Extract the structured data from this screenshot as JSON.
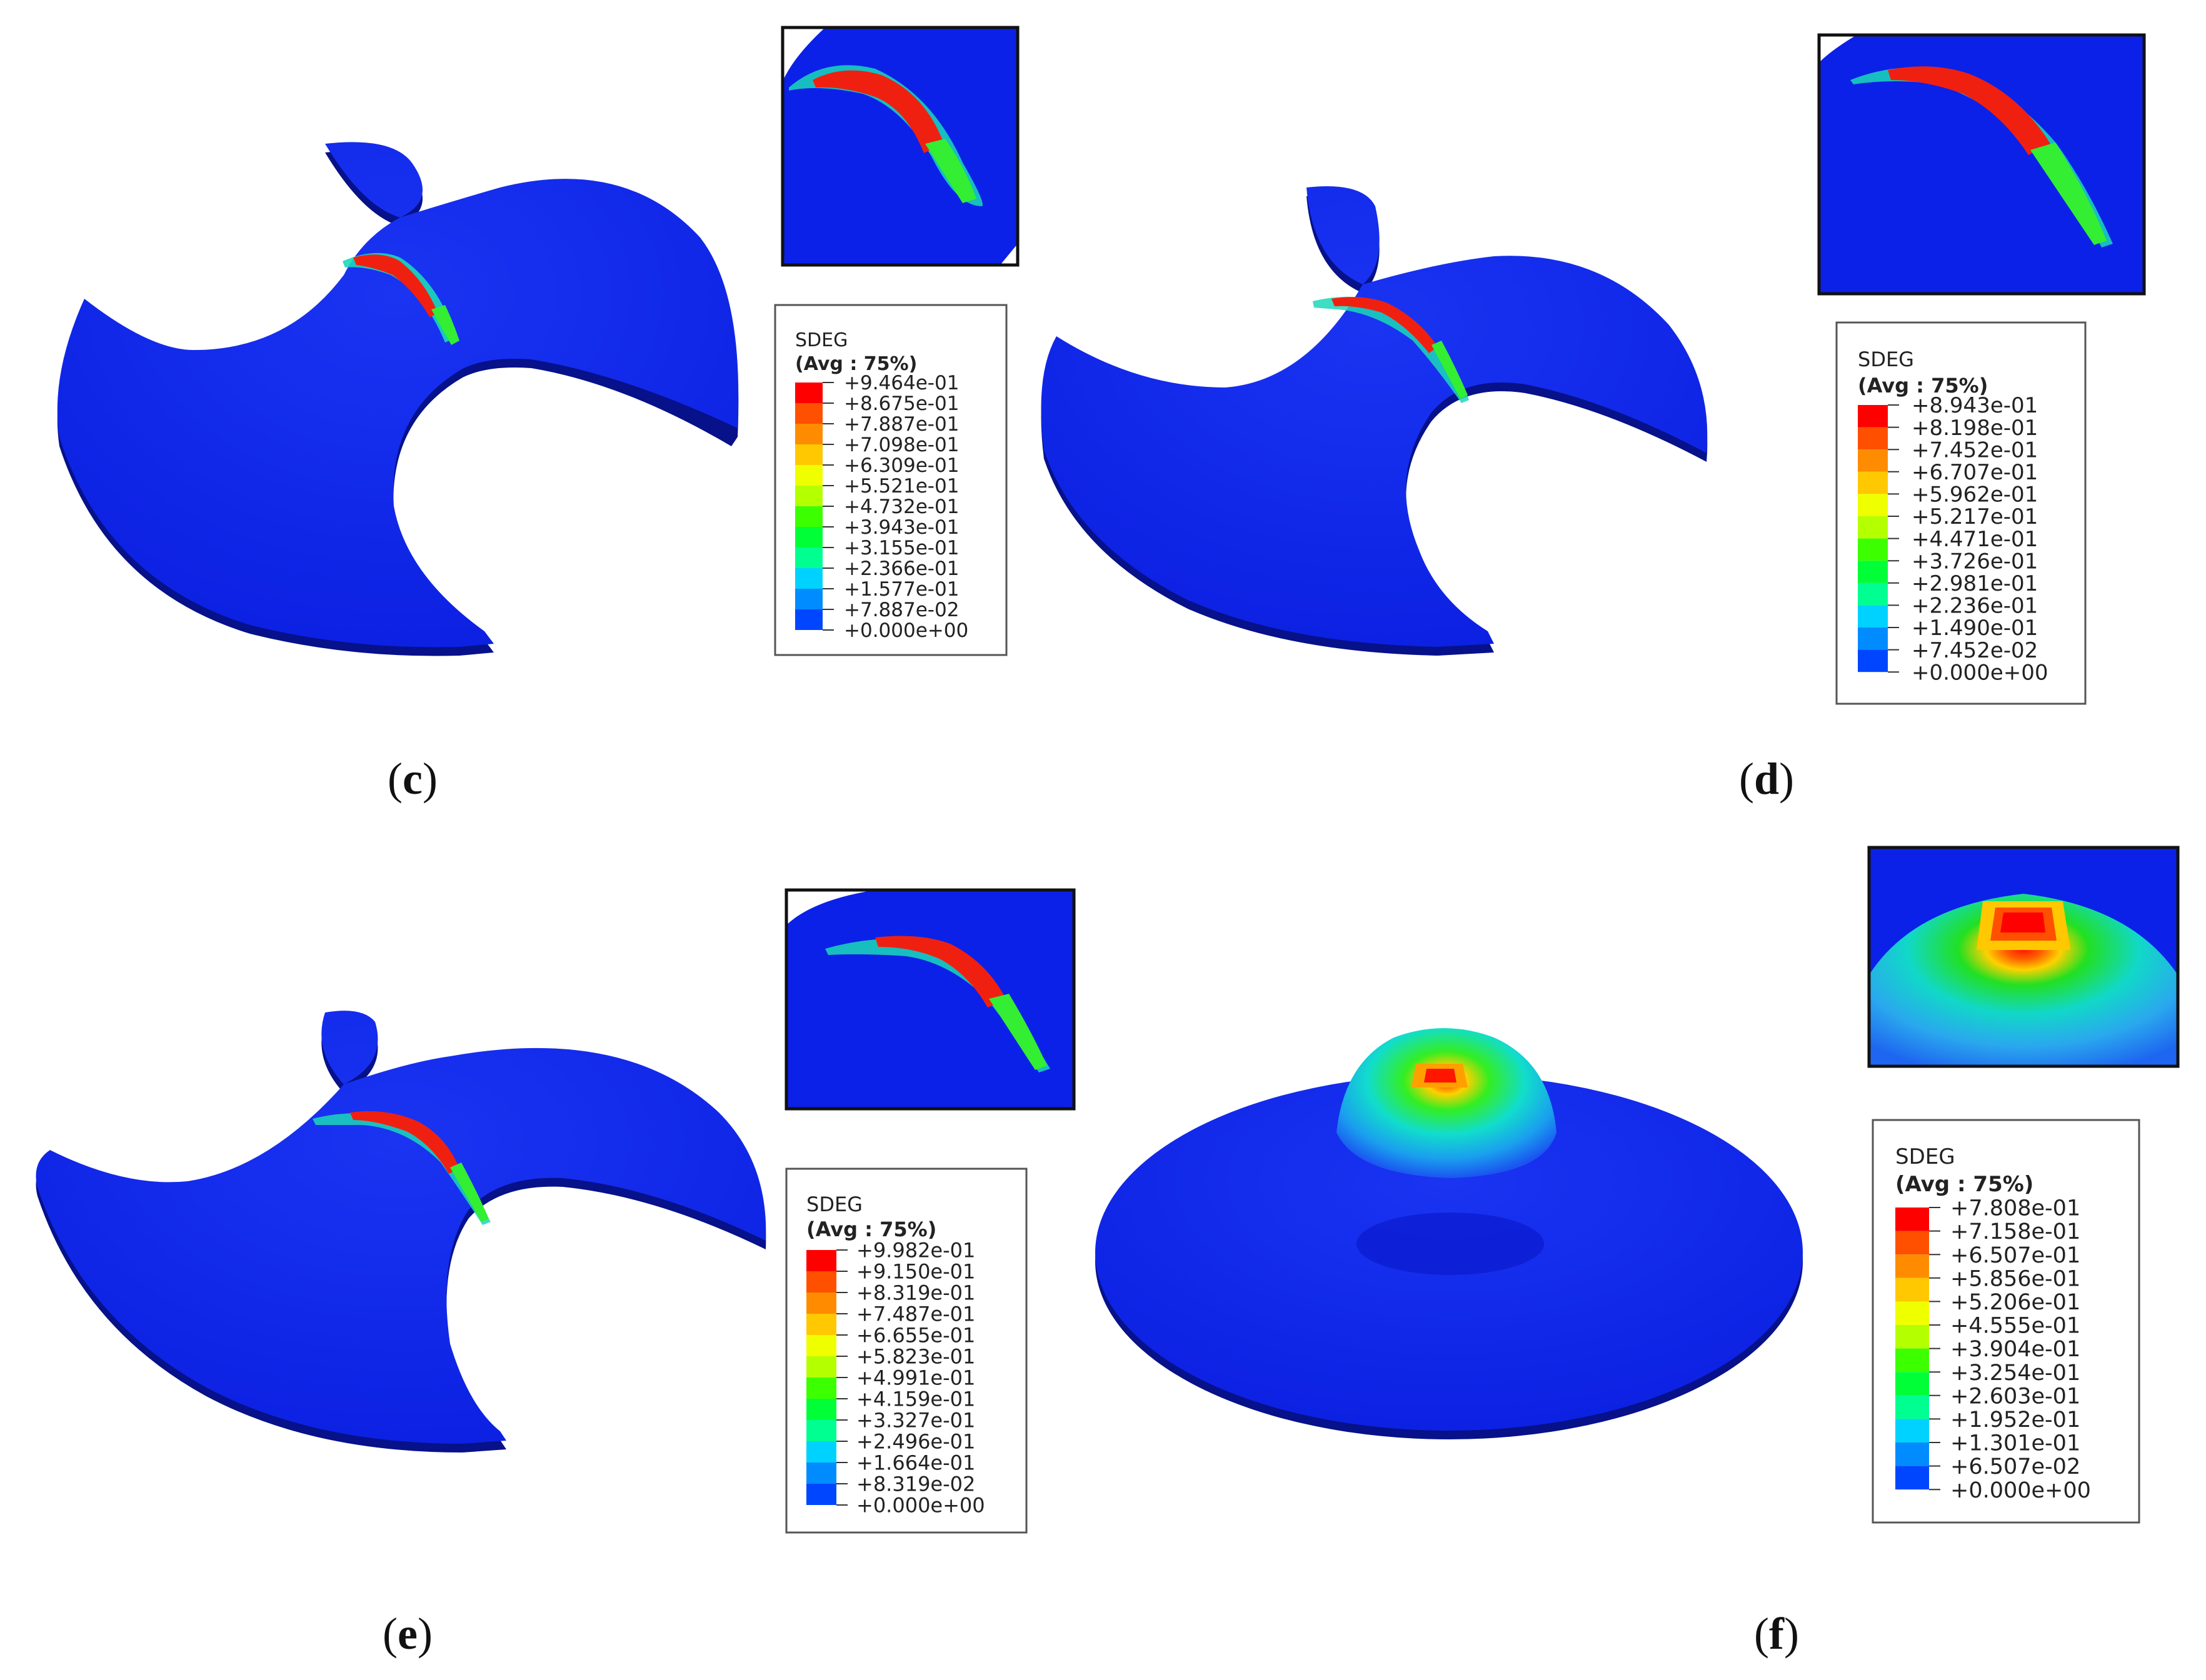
{
  "colors": {
    "background": "#ffffff",
    "plate": "#0b21e8",
    "plate_shadow": "#06118a",
    "scale": [
      "#0000ff",
      "#0046ff",
      "#008cff",
      "#00d2ff",
      "#00ff91",
      "#00ff37",
      "#3cff00",
      "#b4ff00",
      "#f0ff00",
      "#ffc800",
      "#ff8c00",
      "#ff5000",
      "#ff0000"
    ]
  },
  "panels": [
    {
      "id": "c",
      "caption_letter": "c",
      "shape": "notched-disc",
      "legend": {
        "variable": "SDEG",
        "averaging": "(Avg : 75%)",
        "values": [
          "+9.464e-01",
          "+8.675e-01",
          "+7.887e-01",
          "+7.098e-01",
          "+6.309e-01",
          "+5.521e-01",
          "+4.732e-01",
          "+3.943e-01",
          "+3.155e-01",
          "+2.366e-01",
          "+1.577e-01",
          "+7.887e-02",
          "+0.000e+00"
        ]
      }
    },
    {
      "id": "d",
      "caption_letter": "d",
      "shape": "notched-disc",
      "legend": {
        "variable": "SDEG",
        "averaging": "(Avg : 75%)",
        "values": [
          "+8.943e-01",
          "+8.198e-01",
          "+7.452e-01",
          "+6.707e-01",
          "+5.962e-01",
          "+5.217e-01",
          "+4.471e-01",
          "+3.726e-01",
          "+2.981e-01",
          "+2.236e-01",
          "+1.490e-01",
          "+7.452e-02",
          "+0.000e+00"
        ]
      }
    },
    {
      "id": "e",
      "caption_letter": "e",
      "shape": "notched-disc",
      "legend": {
        "variable": "SDEG",
        "averaging": "(Avg : 75%)",
        "values": [
          "+9.982e-01",
          "+9.150e-01",
          "+8.319e-01",
          "+7.487e-01",
          "+6.655e-01",
          "+5.823e-01",
          "+4.991e-01",
          "+4.159e-01",
          "+3.327e-01",
          "+2.496e-01",
          "+1.664e-01",
          "+8.319e-02",
          "+0.000e+00"
        ]
      }
    },
    {
      "id": "f",
      "caption_letter": "f",
      "shape": "domed-disc",
      "legend": {
        "variable": "SDEG",
        "averaging": "(Avg : 75%)",
        "values": [
          "+7.808e-01",
          "+7.158e-01",
          "+6.507e-01",
          "+5.856e-01",
          "+5.206e-01",
          "+4.555e-01",
          "+3.904e-01",
          "+3.254e-01",
          "+2.603e-01",
          "+1.952e-01",
          "+1.301e-01",
          "+6.507e-02",
          "+0.000e+00"
        ]
      }
    }
  ]
}
